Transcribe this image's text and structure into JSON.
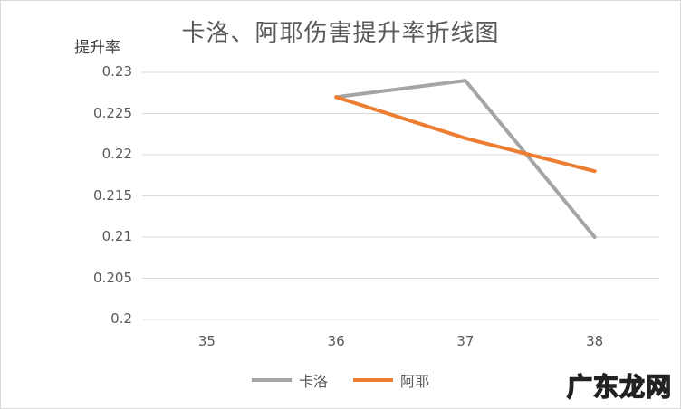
{
  "chart_data": {
    "type": "line",
    "title": "卡洛、阿耶伤害提升率折线图",
    "ylabel": "提升率",
    "xlabel": "",
    "categories": [
      "35",
      "36",
      "37",
      "38"
    ],
    "ylim": [
      0.2,
      0.23
    ],
    "yticks": [
      "0.23",
      "0.225",
      "0.22",
      "0.215",
      "0.21",
      "0.205",
      "0.2"
    ],
    "grid": true,
    "legend_position": "bottom",
    "series": [
      {
        "name": "卡洛",
        "color": "#a5a5a5",
        "values": [
          null,
          0.227,
          0.229,
          0.21
        ]
      },
      {
        "name": "阿耶",
        "color": "#ed7d31",
        "values": [
          null,
          0.227,
          0.222,
          0.218
        ]
      }
    ]
  },
  "watermark": "广东龙网"
}
